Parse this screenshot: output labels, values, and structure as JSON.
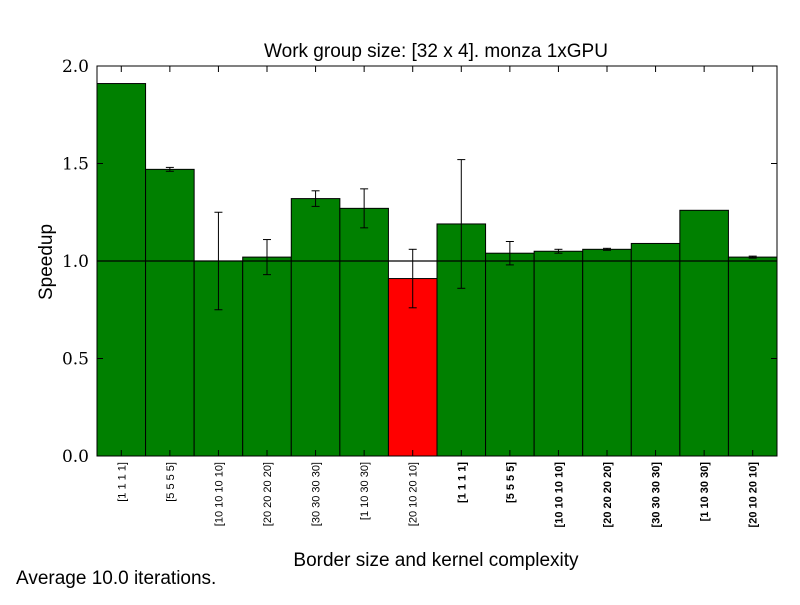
{
  "chart_data": {
    "type": "bar",
    "title": "Work group size: [32 x 4]. monza 1xGPU",
    "xlabel": "Border size and kernel complexity",
    "ylabel": "Speedup",
    "ylim": [
      0.0,
      2.0
    ],
    "yticks": [
      "0.0",
      "0.5",
      "1.0",
      "1.5",
      "2.0"
    ],
    "reference_line": 1.0,
    "grid": false,
    "categories": [
      "[1 1 1 1]",
      "[5 5 5 5]",
      "[10 10 10 10]",
      "[20 20 20 20]",
      "[30 30 30 30]",
      "[1 10 30 30]",
      "[20 10 20 10]",
      "[1 1 1 1]",
      "[5 5 5 5]",
      "[10 10 10 10]",
      "[20 20 20 20]",
      "[30 30 30 30]",
      "[1 10 30 30]",
      "[20 10 20 10]"
    ],
    "label_bold": [
      false,
      false,
      false,
      false,
      false,
      false,
      false,
      true,
      true,
      true,
      true,
      true,
      true,
      true
    ],
    "values": [
      1.91,
      1.47,
      1.0,
      1.02,
      1.32,
      1.27,
      0.91,
      1.19,
      1.04,
      1.05,
      1.06,
      1.09,
      1.26,
      1.02
    ],
    "errors": [
      0,
      0.01,
      0.25,
      0.09,
      0.04,
      0.1,
      0.15,
      0.33,
      0.06,
      0.01,
      0.005,
      0,
      0,
      0.005
    ],
    "colors": [
      "#008000",
      "#008000",
      "#008000",
      "#008000",
      "#008000",
      "#008000",
      "#ff0000",
      "#008000",
      "#008000",
      "#008000",
      "#008000",
      "#008000",
      "#008000",
      "#008000"
    ]
  },
  "footer": {
    "note": "Average 10.0 iterations."
  }
}
